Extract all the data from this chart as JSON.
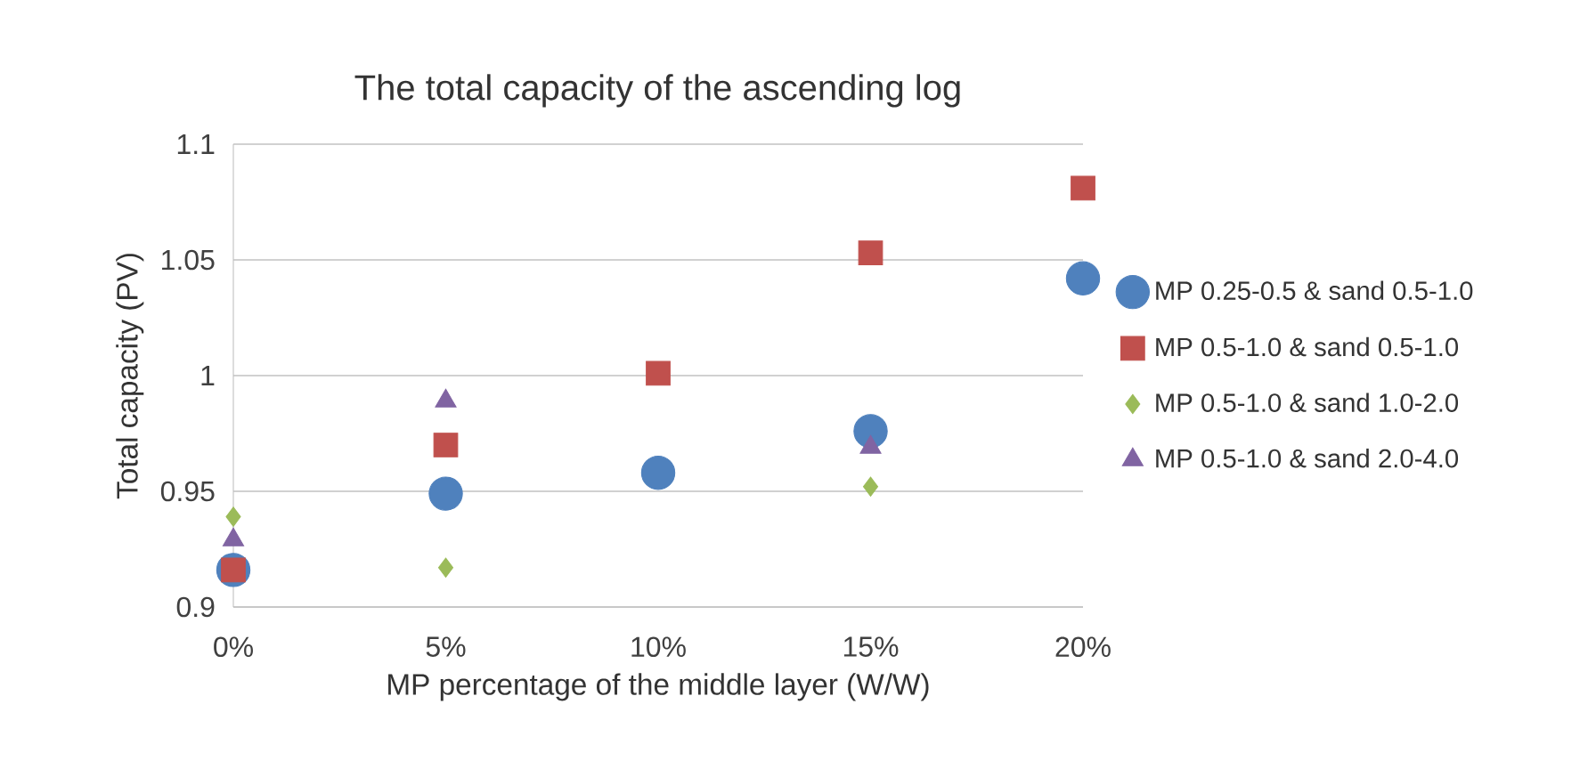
{
  "chart_data": {
    "type": "scatter",
    "title": "The total capacity of the ascending log",
    "xlabel": "MP percentage of the middle layer (W/W)",
    "ylabel": "Total capacity (PV)",
    "xlim": [
      0,
      20
    ],
    "xticks": [
      {
        "value": 0,
        "label": "0%"
      },
      {
        "value": 5,
        "label": "5%"
      },
      {
        "value": 10,
        "label": "10%"
      },
      {
        "value": 15,
        "label": "15%"
      },
      {
        "value": 20,
        "label": "20%"
      }
    ],
    "ylim": [
      0.9,
      1.1
    ],
    "yticks": [
      {
        "value": 0.9,
        "label": "0.9"
      },
      {
        "value": 0.95,
        "label": "0.95"
      },
      {
        "value": 1.0,
        "label": "1"
      },
      {
        "value": 1.05,
        "label": "1.05"
      },
      {
        "value": 1.1,
        "label": "1.1"
      }
    ],
    "grid": "y",
    "legend": "right",
    "series": [
      {
        "name": "MP 0.25-0.5 & sand 0.5-1.0",
        "color": "#4f81bd",
        "marker": "circle",
        "x": [
          0,
          5,
          10,
          15,
          20
        ],
        "values": [
          0.916,
          0.949,
          0.958,
          0.976,
          1.042
        ]
      },
      {
        "name": "MP 0.5-1.0 & sand 0.5-1.0",
        "color": "#c0504d",
        "marker": "square",
        "x": [
          0,
          5,
          10,
          15,
          20
        ],
        "values": [
          0.916,
          0.97,
          1.001,
          1.053,
          1.081
        ]
      },
      {
        "name": "MP 0.5-1.0 & sand 1.0-2.0",
        "color": "#9bbb59",
        "marker": "diamond",
        "x": [
          0,
          5,
          15
        ],
        "values": [
          0.939,
          0.917,
          0.952
        ]
      },
      {
        "name": "MP 0.5-1.0 & sand 2.0-4.0",
        "color": "#8064a2",
        "marker": "triangle",
        "x": [
          0,
          5,
          15
        ],
        "values": [
          0.929,
          0.989,
          0.969
        ]
      }
    ]
  }
}
